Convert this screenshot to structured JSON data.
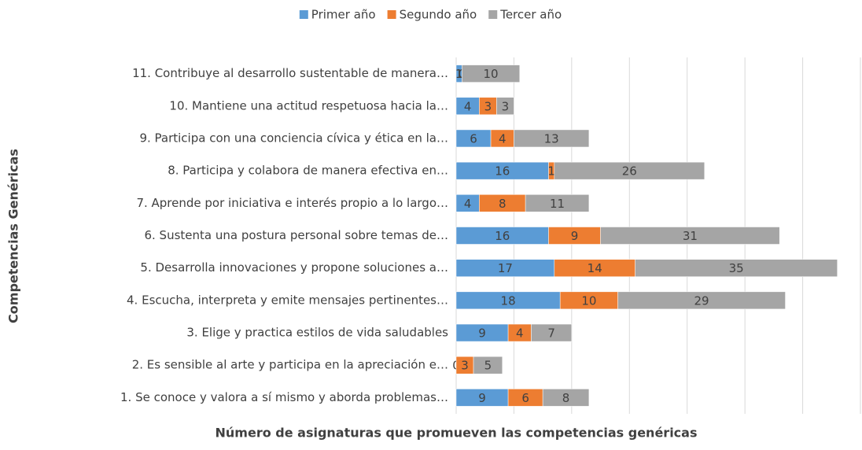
{
  "chart_data": {
    "type": "stacked-barh",
    "x_label": "Número de asignaturas que promueven las competencias genéricas",
    "y_label": "Competencias Genéricas",
    "categories": [
      "1. Se conoce y valora a sí mismo y aborda problemas…",
      "2. Es sensible al arte y participa en la apreciación e…",
      "3. Elige y practica estilos de vida saludables",
      "4. Escucha, interpreta y emite mensajes pertinentes…",
      "5. Desarrolla innovaciones y propone soluciones a…",
      "6. Sustenta una postura personal sobre temas de…",
      "7. Aprende por iniciativa e interés propio a lo largo…",
      "8. Participa y colabora de manera efectiva en…",
      "9. Participa con una conciencia cívica y ética en la…",
      "10. Mantiene una actitud respetuosa hacia la…",
      "11. Contribuye al desarrollo sustentable de manera…"
    ],
    "series": [
      {
        "name": "Primer año",
        "color": "#5b9bd5",
        "values": [
          9,
          0,
          9,
          18,
          17,
          16,
          4,
          16,
          6,
          4,
          1
        ]
      },
      {
        "name": "Segundo año",
        "color": "#ed7d31",
        "values": [
          6,
          3,
          4,
          10,
          14,
          9,
          8,
          1,
          4,
          3,
          0
        ]
      },
      {
        "name": "Tercer año",
        "color": "#a5a5a5",
        "values": [
          8,
          5,
          7,
          29,
          35,
          31,
          11,
          26,
          13,
          3,
          10
        ]
      }
    ],
    "xlim": [
      0,
      70
    ],
    "xticks": [
      0,
      10,
      20,
      30,
      40,
      50,
      60,
      70
    ],
    "grid": true,
    "legend": "top"
  }
}
